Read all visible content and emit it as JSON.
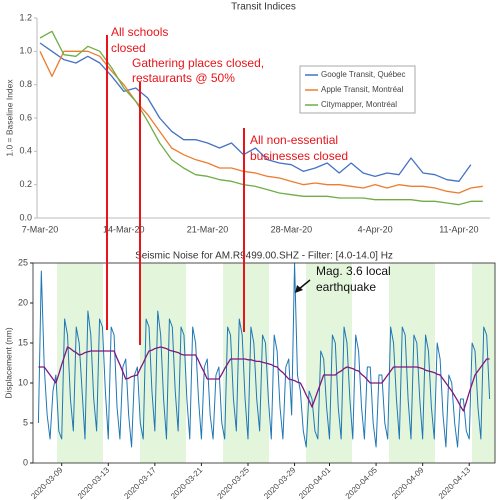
{
  "chart_data": [
    {
      "type": "line",
      "title": "Transit Indices",
      "ylabel": "1.0 = Baseline Index",
      "categories": [
        "7-Mar-20",
        null,
        null,
        null,
        null,
        null,
        null,
        "14-Mar-20",
        null,
        null,
        null,
        null,
        null,
        null,
        "21-Mar-20",
        null,
        null,
        null,
        null,
        null,
        null,
        "28-Mar-20",
        null,
        null,
        null,
        null,
        null,
        null,
        "4-Apr-20",
        null,
        null,
        null,
        null,
        null,
        null,
        "11-Apr-20",
        null,
        null
      ],
      "ylim": [
        0,
        1.2
      ],
      "yticks": [
        {
          "value": 0,
          "label": "0.0"
        },
        0.2,
        0.4,
        0.6,
        0.8,
        {
          "value": 1,
          "label": "1.0"
        },
        1.2
      ],
      "legend": true,
      "series": [
        {
          "name": "Google Transit, Québec",
          "color": "#4472c4",
          "values": [
            1.05,
            1.0,
            0.95,
            0.93,
            0.97,
            0.93,
            0.85,
            0.76,
            0.78,
            0.72,
            0.6,
            0.52,
            0.47,
            0.47,
            0.45,
            0.42,
            0.45,
            0.38,
            0.42,
            0.35,
            0.33,
            0.32,
            0.28,
            0.3,
            0.33,
            0.27,
            0.33,
            0.27,
            0.25,
            0.27,
            0.26,
            0.36,
            0.27,
            0.26,
            0.23,
            0.22,
            0.32,
            null
          ]
        },
        {
          "name": "Apple Transit, Montréal",
          "color": "#ed7d31",
          "values": [
            1.0,
            0.85,
            1.0,
            1.0,
            1.0,
            0.97,
            0.88,
            0.8,
            0.7,
            0.62,
            0.52,
            0.42,
            0.38,
            0.35,
            0.33,
            0.3,
            0.3,
            0.28,
            0.27,
            0.25,
            0.24,
            0.22,
            0.2,
            0.21,
            0.2,
            0.2,
            0.19,
            0.18,
            0.2,
            0.18,
            0.2,
            0.19,
            0.19,
            0.18,
            0.16,
            0.15,
            0.18,
            0.19
          ]
        },
        {
          "name": "Citymapper, Montréal",
          "color": "#70ad47",
          "values": [
            1.08,
            1.12,
            0.98,
            0.97,
            1.03,
            1.0,
            0.9,
            0.78,
            0.7,
            0.58,
            0.45,
            0.35,
            0.3,
            0.26,
            0.25,
            0.23,
            0.22,
            0.2,
            0.19,
            0.17,
            0.15,
            0.14,
            0.13,
            0.13,
            0.13,
            0.12,
            0.12,
            0.12,
            0.11,
            0.11,
            0.11,
            0.11,
            0.1,
            0.1,
            0.09,
            0.08,
            0.1,
            0.1
          ]
        }
      ],
      "annotations": [
        [
          "All schools",
          "closed"
        ],
        [
          "Gathering places closed,",
          "restaurants @ 50%"
        ],
        [
          "All non-essential",
          "businesses closed"
        ]
      ]
    },
    {
      "type": "line",
      "title": "Seismic Noise for AM.R9499.00.SHZ - Filter: [4.0-14.0] Hz",
      "ylabel": "Displacement (nm)",
      "categories": [
        null,
        null,
        null,
        null,
        null,
        null,
        null,
        null,
        "2020-03-09",
        null,
        null,
        null,
        null,
        null,
        null,
        null,
        null,
        null,
        null,
        null,
        null,
        null,
        null,
        null,
        "2020-03-13",
        null,
        null,
        null,
        null,
        null,
        null,
        null,
        null,
        null,
        null,
        null,
        null,
        null,
        null,
        null,
        "2020-03-17",
        null,
        null,
        null,
        null,
        null,
        null,
        null,
        null,
        null,
        null,
        null,
        null,
        null,
        null,
        null,
        "2020-03-21",
        null,
        null,
        null,
        null,
        null,
        null,
        null,
        null,
        null,
        null,
        null,
        null,
        null,
        null,
        null,
        "2020-03-25",
        null,
        null,
        null,
        null,
        null,
        null,
        null,
        null,
        null,
        null,
        null,
        null,
        null,
        null,
        null,
        "2020-03-29",
        null,
        null,
        null,
        null,
        null,
        null,
        null,
        null,
        null,
        null,
        null,
        "2020-04-01",
        null,
        null,
        null,
        null,
        null,
        null,
        null,
        null,
        null,
        null,
        null,
        null,
        null,
        null,
        null,
        "2020-04-05",
        null,
        null,
        null,
        null,
        null,
        null,
        null,
        null,
        null,
        null,
        null,
        null,
        null,
        null,
        null,
        "2020-04-09",
        null,
        null,
        null,
        null,
        null,
        null,
        null,
        null,
        null,
        null,
        null,
        null,
        null,
        null,
        null,
        "2020-04-13",
        null,
        null,
        null,
        null,
        null,
        null,
        null
      ],
      "ylim": [
        0,
        25
      ],
      "yticks": [
        0,
        5,
        10,
        15,
        20,
        25
      ],
      "series": [
        {
          "color": "#1f77b4",
          "values": [
            5,
            24,
            12,
            6,
            3,
            9,
            11,
            4,
            3,
            18,
            16,
            8,
            4,
            17,
            15,
            9,
            3,
            19,
            16,
            8,
            4,
            18,
            17,
            9,
            3,
            17,
            16,
            7,
            3,
            12,
            13,
            6,
            2,
            11,
            12,
            5,
            3,
            18,
            17,
            9,
            4,
            19,
            16,
            8,
            3,
            18,
            17,
            9,
            4,
            17,
            16,
            8,
            3,
            17,
            15,
            8,
            3,
            12,
            13,
            6,
            3,
            11,
            12,
            5,
            3,
            17,
            16,
            8,
            4,
            18,
            16,
            8,
            3,
            17,
            15,
            8,
            4,
            16,
            15,
            8,
            3,
            16,
            14,
            7,
            3,
            12,
            13,
            6,
            25,
            11,
            9,
            4,
            2,
            9,
            8,
            4,
            3,
            14,
            13,
            7,
            3,
            16,
            15,
            7,
            3,
            17,
            15,
            8,
            3,
            16,
            14,
            7,
            3,
            12,
            12,
            5,
            2,
            11,
            11,
            5,
            3,
            17,
            15,
            8,
            3,
            17,
            16,
            8,
            3,
            16,
            15,
            8,
            3,
            16,
            14,
            7,
            3,
            15,
            13,
            6,
            2,
            11,
            10,
            5,
            2,
            8,
            8,
            4,
            3,
            15,
            14,
            7,
            3,
            17,
            16,
            8
          ]
        },
        {
          "color": "#80177f",
          "values": [
            12,
            12,
            12,
            11.5,
            11,
            10.5,
            10,
            11.1,
            12.3,
            13.4,
            14.5,
            14.3,
            14,
            13.8,
            13.5,
            13.6,
            13.8,
            13.9,
            14,
            14,
            14,
            14,
            14,
            14,
            14,
            14,
            14,
            13.1,
            12.3,
            11.4,
            10.5,
            10.6,
            10.8,
            10.9,
            11,
            11.8,
            12.5,
            13.3,
            14,
            14.1,
            14.3,
            14.4,
            14.5,
            14.4,
            14.3,
            14.1,
            14,
            13.9,
            13.8,
            13.6,
            13.5,
            13.5,
            13.5,
            13.5,
            13.5,
            12.8,
            12,
            11.3,
            10.5,
            10.5,
            10.5,
            10.5,
            10.5,
            11.1,
            11.8,
            12.4,
            13,
            13,
            13,
            13,
            13,
            13,
            12.9,
            12.9,
            12.8,
            12.7,
            12.7,
            12.6,
            12.5,
            12.4,
            12.3,
            12.1,
            12,
            11.6,
            11.3,
            10.9,
            10.5,
            10.4,
            10.3,
            10.1,
            10,
            9.3,
            8.5,
            7.8,
            7,
            8,
            9,
            10,
            11,
            11,
            11,
            11,
            11,
            11.3,
            11.5,
            11.8,
            12,
            11.9,
            11.8,
            11.6,
            11.5,
            11.1,
            10.8,
            10.4,
            10,
            10,
            10,
            10,
            10,
            10.5,
            11,
            11.5,
            12,
            12,
            12,
            12,
            12,
            12,
            12,
            12,
            12,
            11.9,
            11.8,
            11.6,
            11.5,
            11.4,
            11.3,
            11.1,
            11,
            10.5,
            10,
            9.5,
            9,
            8.4,
            7.8,
            7.1,
            6.5,
            7.6,
            8.8,
            9.9,
            11,
            11.5,
            12,
            12.5,
            13,
            13
          ]
        }
      ],
      "annotations": [
        [
          "Mag. 3.6 local",
          "earthquake"
        ]
      ]
    }
  ]
}
